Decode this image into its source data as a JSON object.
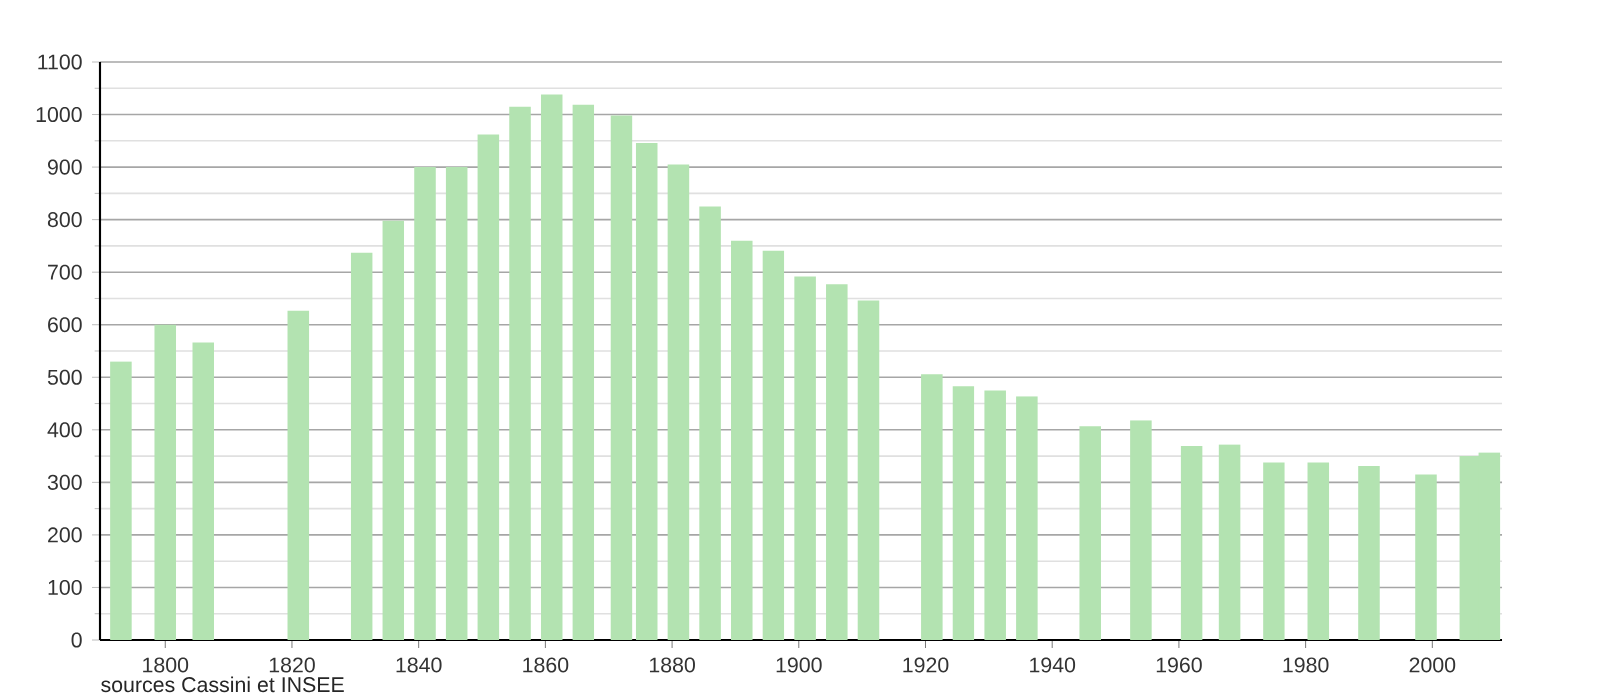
{
  "chart_data": {
    "type": "bar",
    "color": "#b3e3b1",
    "x": [
      1793,
      1800,
      1806,
      1821,
      1831,
      1836,
      1841,
      1846,
      1851,
      1856,
      1861,
      1866,
      1872,
      1876,
      1881,
      1886,
      1891,
      1896,
      1901,
      1906,
      1911,
      1921,
      1926,
      1931,
      1936,
      1946,
      1954,
      1962,
      1968,
      1975,
      1982,
      1990,
      1999,
      2006,
      2009
    ],
    "values": [
      530,
      600,
      566,
      627,
      737,
      798,
      900,
      900,
      962,
      1015,
      1038,
      1019,
      998,
      946,
      905,
      825,
      760,
      741,
      692,
      677,
      646,
      506,
      483,
      475,
      464,
      407,
      418,
      369,
      372,
      338,
      338,
      331,
      315,
      350,
      357
    ],
    "xlim": [
      1789.7,
      2011
    ],
    "xticks": [
      1800,
      1820,
      1840,
      1860,
      1880,
      1900,
      1920,
      1940,
      1960,
      1980,
      2000
    ],
    "ylim": [
      0,
      1100
    ],
    "yticks": [
      0,
      100,
      200,
      300,
      400,
      500,
      600,
      700,
      800,
      900,
      1000,
      1100
    ],
    "grid": "y",
    "annotations": [
      "sources Cassini et INSEE"
    ]
  }
}
